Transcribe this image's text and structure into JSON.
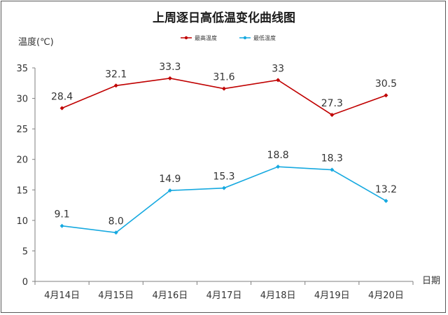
{
  "chart_data": {
    "type": "line",
    "title": "上周逐日高低温变化曲线图",
    "ylabel": "温度(℃)",
    "xlabel": "日期",
    "categories": [
      "4月14日",
      "4月15日",
      "4月16日",
      "4月17日",
      "4月18日",
      "4月19日",
      "4月20日"
    ],
    "ylim": [
      0,
      35
    ],
    "yticks": [
      0,
      5,
      10,
      15,
      20,
      25,
      30,
      35
    ],
    "grid": false,
    "legend_position": "top",
    "series": [
      {
        "name": "最高温度",
        "color": "#c00000",
        "values": [
          28.4,
          32.1,
          33.3,
          31.6,
          33,
          27.3,
          30.5
        ],
        "labels": [
          "28.4",
          "32.1",
          "33.3",
          "31.6",
          "33",
          "27.3",
          "30.5"
        ]
      },
      {
        "name": "最低温度",
        "color": "#16a9e0",
        "values": [
          9.1,
          8.0,
          14.9,
          15.3,
          18.8,
          18.3,
          13.2
        ],
        "labels": [
          "9.1",
          "8.0",
          "14.9",
          "15.3",
          "18.8",
          "18.3",
          "13.2"
        ]
      }
    ]
  }
}
